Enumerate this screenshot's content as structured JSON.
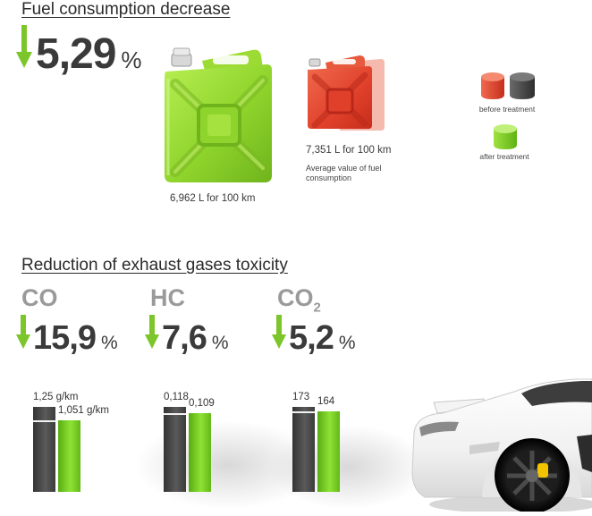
{
  "fuel": {
    "title": "Fuel consumption decrease",
    "value": "5,29",
    "unit": "%",
    "after_label": "6,962 L for 100 km",
    "before_label": "7,351 L for 100 km",
    "average_note": "Average value of fuel consumption"
  },
  "legend": {
    "before": "before treatment",
    "after": "after treatment"
  },
  "toxicity": {
    "title": "Reduction of exhaust gases toxicity",
    "gases": [
      {
        "name": "CO",
        "sub": "",
        "value": "15,9",
        "unit": "%",
        "before_label": "1,25 g/km",
        "after_label": "1,051 g/km",
        "before": 1.25,
        "after": 1.051
      },
      {
        "name": "HC",
        "sub": "",
        "value": "7,6",
        "unit": "%",
        "before_label": "0,118",
        "after_label": "0,109",
        "before": 0.118,
        "after": 0.109
      },
      {
        "name": "CO",
        "sub": "2",
        "value": "5,2",
        "unit": "%",
        "before_label": "173",
        "after_label": "164",
        "before": 173,
        "after": 164
      }
    ]
  },
  "colors": {
    "green": "#7ed321",
    "red": "#e8462a",
    "dark": "#3f3f3f",
    "arrow": "#7cc52a"
  }
}
